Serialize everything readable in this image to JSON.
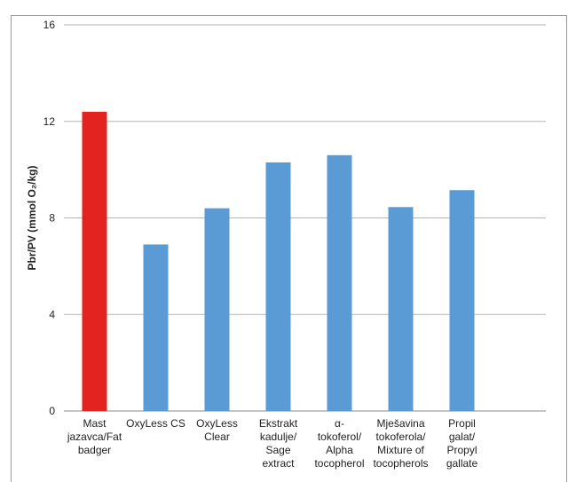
{
  "header_fragment": "",
  "chart_data": {
    "type": "bar",
    "title": "",
    "xlabel": "",
    "ylabel": "Pbr/PV (mmol O₂/kg)",
    "ylim": [
      0,
      16
    ],
    "yticks": [
      0,
      4,
      8,
      12,
      16
    ],
    "grid": true,
    "categories": [
      [
        "Mast",
        "jazavca/Fat",
        "badger"
      ],
      [
        "OxyLess CS"
      ],
      [
        "OxyLess",
        "Clear"
      ],
      [
        "Ekstrakt",
        "kadulje/",
        "Sage",
        "extract"
      ],
      [
        "α-",
        "tokoferol/",
        "Alpha",
        "tocopherol"
      ],
      [
        "Mješavina",
        "tokoferola/",
        "Mixture of",
        "tocopherols"
      ],
      [
        "Propil",
        "galat/",
        "Propyl",
        "gallate"
      ]
    ],
    "values": [
      12.4,
      6.9,
      8.4,
      10.3,
      10.6,
      8.45,
      9.15
    ],
    "colors": [
      "#e32320",
      "#5b9bd5",
      "#5b9bd5",
      "#5b9bd5",
      "#5b9bd5",
      "#5b9bd5",
      "#5b9bd5"
    ]
  }
}
